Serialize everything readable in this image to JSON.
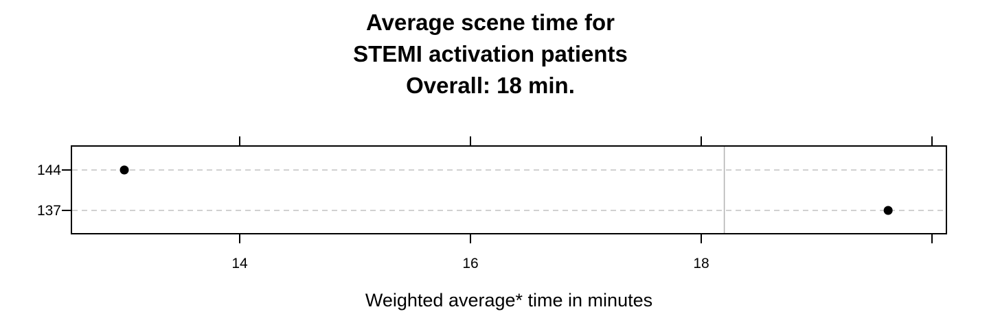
{
  "chart_data": {
    "type": "scatter",
    "title": [
      "Average scene time for",
      "STEMI activation patients",
      "Overall:  18 min."
    ],
    "xlabel": "Weighted average* time in minutes",
    "ylabel": "",
    "categories": [
      "137",
      "144"
    ],
    "values": [
      19.62,
      13.0
    ],
    "xlim": [
      12.5,
      20.1
    ],
    "xticks": [
      14,
      16,
      18,
      20
    ],
    "xtick_labels": [
      "14",
      "16",
      "18",
      ""
    ],
    "reference_line": 18.2,
    "grid": "dashed horizontal",
    "colors": {
      "points": "#000000",
      "grid": "#c0c0c0",
      "reference": "#b0b0b0"
    }
  }
}
